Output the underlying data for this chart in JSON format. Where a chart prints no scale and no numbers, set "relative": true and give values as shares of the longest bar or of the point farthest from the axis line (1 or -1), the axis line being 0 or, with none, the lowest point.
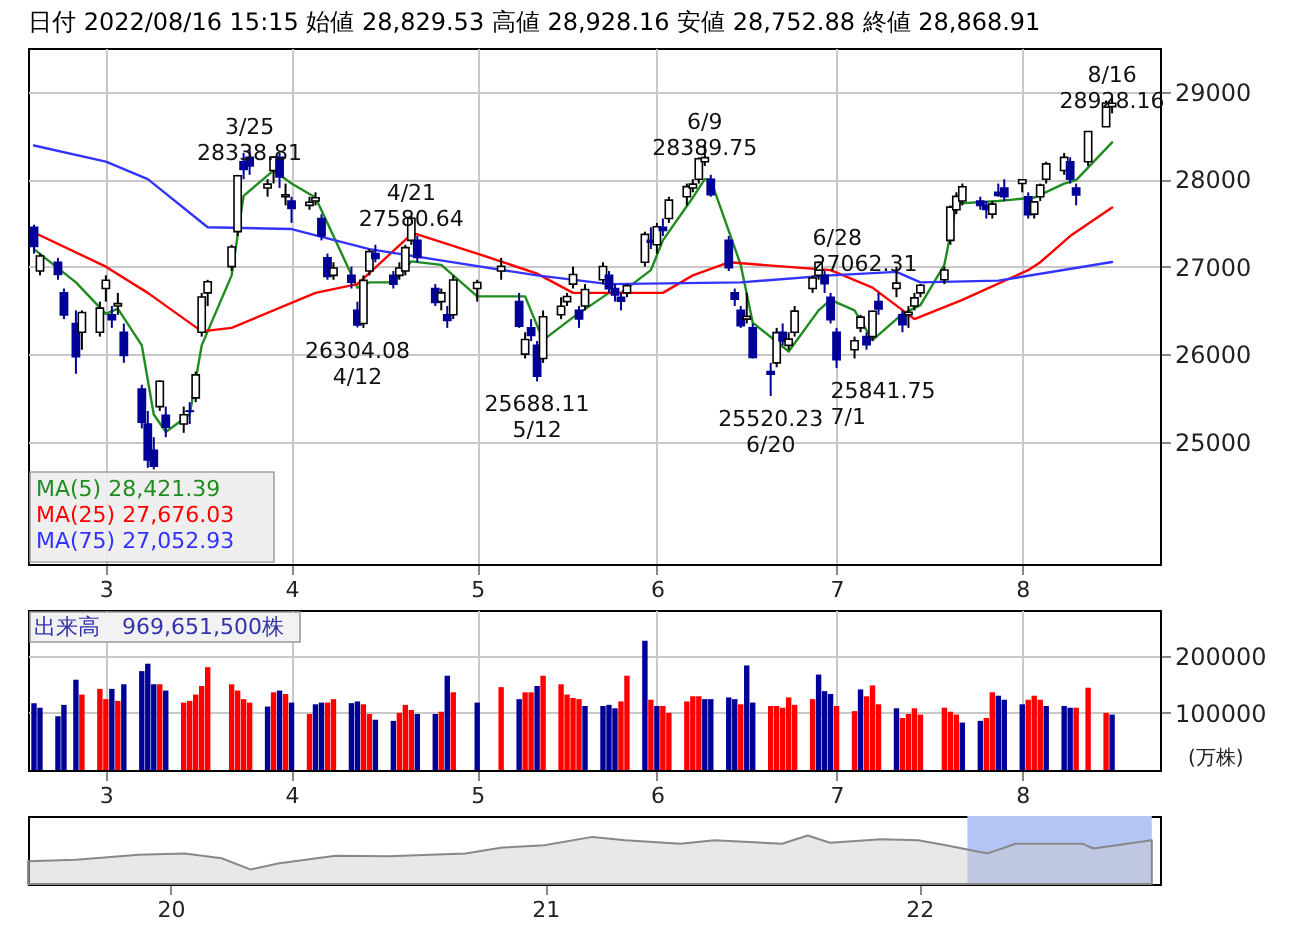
{
  "chart_data": [
    {
      "type": "candlestick",
      "title": "日付 2022/08/16 15:15 始値 28,829.53 高値 28,928.16 安値 28,752.88 終値 28,868.91",
      "x": [
        "2022-02-17",
        "2022-02-18",
        "2022-02-21",
        "2022-02-22",
        "2022-02-24",
        "2022-02-25",
        "2022-02-28",
        "2022-03-01",
        "2022-03-02",
        "2022-03-03",
        "2022-03-04",
        "2022-03-07",
        "2022-03-08",
        "2022-03-09",
        "2022-03-10",
        "2022-03-11",
        "2022-03-14",
        "2022-03-15",
        "2022-03-16",
        "2022-03-17",
        "2022-03-18",
        "2022-03-22",
        "2022-03-23",
        "2022-03-24",
        "2022-03-25",
        "2022-03-28",
        "2022-03-29",
        "2022-03-30",
        "2022-03-31",
        "2022-04-01",
        "2022-04-04",
        "2022-04-05",
        "2022-04-06",
        "2022-04-07",
        "2022-04-08",
        "2022-04-11",
        "2022-04-12",
        "2022-04-13",
        "2022-04-14",
        "2022-04-15",
        "2022-04-18",
        "2022-04-19",
        "2022-04-20",
        "2022-04-21",
        "2022-04-22",
        "2022-04-25",
        "2022-04-26",
        "2022-04-27",
        "2022-04-28",
        "2022-05-02",
        "2022-05-06",
        "2022-05-09",
        "2022-05-10",
        "2022-05-11",
        "2022-05-12",
        "2022-05-13",
        "2022-05-16",
        "2022-05-17",
        "2022-05-18",
        "2022-05-19",
        "2022-05-20",
        "2022-05-23",
        "2022-05-24",
        "2022-05-25",
        "2022-05-26",
        "2022-05-27",
        "2022-05-30",
        "2022-05-31",
        "2022-06-01",
        "2022-06-02",
        "2022-06-03",
        "2022-06-06",
        "2022-06-07",
        "2022-06-08",
        "2022-06-09",
        "2022-06-10",
        "2022-06-13",
        "2022-06-14",
        "2022-06-15",
        "2022-06-16",
        "2022-06-17",
        "2022-06-20",
        "2022-06-21",
        "2022-06-22",
        "2022-06-23",
        "2022-06-24",
        "2022-06-27",
        "2022-06-28",
        "2022-06-29",
        "2022-06-30",
        "2022-07-01",
        "2022-07-04",
        "2022-07-05",
        "2022-07-06",
        "2022-07-07",
        "2022-07-08",
        "2022-07-11",
        "2022-07-12",
        "2022-07-13",
        "2022-07-14",
        "2022-07-15",
        "2022-07-19",
        "2022-07-20",
        "2022-07-21",
        "2022-07-22",
        "2022-07-25",
        "2022-07-26",
        "2022-07-27",
        "2022-07-28",
        "2022-07-29",
        "2022-08-01",
        "2022-08-02",
        "2022-08-03",
        "2022-08-04",
        "2022-08-05",
        "2022-08-08",
        "2022-08-09",
        "2022-08-10",
        "2022-08-12",
        "2022-08-15",
        "2022-08-16"
      ],
      "ohlc": [
        [
          27450,
          27480,
          27150,
          27232
        ],
        [
          26950,
          27150,
          26900,
          27122
        ],
        [
          27050,
          27100,
          26850,
          26910
        ],
        [
          26700,
          26750,
          26400,
          26449
        ],
        [
          26350,
          26500,
          25775,
          25970
        ],
        [
          26250,
          26500,
          26050,
          26476
        ],
        [
          26250,
          26600,
          26200,
          26526
        ],
        [
          26750,
          26900,
          26600,
          26844
        ],
        [
          26450,
          26550,
          26300,
          26393
        ],
        [
          26550,
          26700,
          26450,
          26577
        ],
        [
          26250,
          26350,
          25900,
          25985
        ],
        [
          25600,
          25650,
          25150,
          25221
        ],
        [
          25200,
          25350,
          24700,
          24790
        ],
        [
          24900,
          25050,
          24682,
          24717
        ],
        [
          25400,
          25700,
          25350,
          25690
        ],
        [
          25300,
          25400,
          25050,
          25163
        ],
        [
          25200,
          25400,
          25100,
          25307
        ],
        [
          25350,
          25450,
          25200,
          25346
        ],
        [
          25500,
          25800,
          25450,
          25762
        ],
        [
          26250,
          26700,
          26200,
          26653
        ],
        [
          26700,
          26850,
          26550,
          26827
        ],
        [
          27000,
          27250,
          26950,
          27224
        ],
        [
          27400,
          28050,
          27350,
          28040
        ],
        [
          28200,
          28300,
          28000,
          28110
        ],
        [
          28250,
          28338.81,
          28050,
          28150
        ],
        [
          27900,
          28000,
          27800,
          27943
        ],
        [
          28100,
          28260,
          27950,
          28252
        ],
        [
          28250,
          28300,
          27900,
          28027
        ],
        [
          27800,
          27950,
          27700,
          27821
        ],
        [
          27750,
          27800,
          27500,
          27665
        ],
        [
          27700,
          27800,
          27650,
          27736
        ],
        [
          27750,
          27850,
          27700,
          27787
        ],
        [
          27550,
          27600,
          27300,
          27350
        ],
        [
          27100,
          27150,
          26850,
          26888
        ],
        [
          26900,
          27050,
          26850,
          26985
        ],
        [
          26900,
          27000,
          26750,
          26821
        ],
        [
          26500,
          26600,
          26304.08,
          26334
        ],
        [
          26350,
          26900,
          26300,
          26843
        ],
        [
          26950,
          27200,
          26900,
          27172
        ],
        [
          27150,
          27250,
          27050,
          27093
        ],
        [
          26900,
          26950,
          26750,
          26799
        ],
        [
          26900,
          27050,
          26850,
          26985
        ],
        [
          26950,
          27250,
          26900,
          27217
        ],
        [
          27300,
          27580.64,
          27250,
          27553
        ],
        [
          27300,
          27350,
          27050,
          27105
        ],
        [
          26750,
          26800,
          26550,
          26590
        ],
        [
          26600,
          26750,
          26500,
          26700
        ],
        [
          26450,
          26550,
          26300,
          26386
        ],
        [
          26450,
          26900,
          26400,
          26847
        ],
        [
          26750,
          26850,
          26600,
          26818
        ],
        [
          26950,
          27100,
          26850,
          27003
        ],
        [
          26600,
          26700,
          26300,
          26319
        ],
        [
          26000,
          26250,
          25950,
          26167
        ],
        [
          26300,
          26400,
          26150,
          26213
        ],
        [
          26100,
          26150,
          25688.11,
          25748
        ],
        [
          25950,
          26500,
          25900,
          26427
        ],
        [
          26450,
          26650,
          26400,
          26547
        ],
        [
          26600,
          26700,
          26550,
          26659
        ],
        [
          26800,
          27000,
          26750,
          26911
        ],
        [
          26500,
          26550,
          26300,
          26402
        ],
        [
          26550,
          26800,
          26500,
          26739
        ],
        [
          26850,
          27050,
          26800,
          27001
        ],
        [
          26900,
          26950,
          26700,
          26748
        ],
        [
          26750,
          26800,
          26600,
          26677
        ],
        [
          26650,
          26700,
          26500,
          26604
        ],
        [
          26700,
          26800,
          26650,
          26781
        ],
        [
          27050,
          27400,
          27000,
          27369
        ],
        [
          27300,
          27450,
          27200,
          27279
        ],
        [
          27250,
          27500,
          27150,
          27457
        ],
        [
          27450,
          27550,
          27350,
          27413
        ],
        [
          27550,
          27800,
          27500,
          27761
        ],
        [
          27800,
          27950,
          27700,
          27915
        ],
        [
          27900,
          28000,
          27850,
          27943
        ],
        [
          28000,
          28250,
          27950,
          28234
        ],
        [
          28200,
          28389.75,
          28150,
          28246
        ],
        [
          28000,
          28050,
          27800,
          27824
        ],
        [
          27300,
          27350,
          26950,
          26987
        ],
        [
          26700,
          26750,
          26550,
          26629
        ],
        [
          26500,
          26550,
          26300,
          26326
        ],
        [
          26400,
          26700,
          26350,
          26431
        ],
        [
          26300,
          26350,
          25950,
          25963
        ],
        [
          25800,
          25900,
          25520.23,
          25771
        ],
        [
          25900,
          26300,
          25850,
          26246
        ],
        [
          26250,
          26350,
          26100,
          26149
        ],
        [
          26100,
          26250,
          26050,
          26171
        ],
        [
          26250,
          26550,
          26200,
          26491
        ],
        [
          26750,
          26900,
          26700,
          26871
        ],
        [
          26900,
          27062.31,
          26850,
          27049
        ],
        [
          26900,
          26950,
          26700,
          26804
        ],
        [
          26650,
          26700,
          26350,
          26393
        ],
        [
          26250,
          26300,
          25841.75,
          25935
        ],
        [
          26050,
          26200,
          25950,
          26153
        ],
        [
          26300,
          26450,
          26250,
          26423
        ],
        [
          26200,
          26250,
          26050,
          26107
        ],
        [
          26200,
          26500,
          26150,
          26490
        ],
        [
          26600,
          26700,
          26450,
          26517
        ],
        [
          26750,
          27000,
          26650,
          26812
        ],
        [
          26450,
          26500,
          26250,
          26336
        ],
        [
          26450,
          26550,
          26300,
          26478
        ],
        [
          26550,
          26700,
          26500,
          26643
        ],
        [
          26700,
          26800,
          26650,
          26788
        ],
        [
          26850,
          27000,
          26800,
          26961
        ],
        [
          27300,
          27700,
          27250,
          27680
        ],
        [
          27650,
          27850,
          27600,
          27803
        ],
        [
          27750,
          27950,
          27700,
          27914
        ],
        [
          27750,
          27800,
          27650,
          27699
        ],
        [
          27700,
          27750,
          27550,
          27655
        ],
        [
          27600,
          27750,
          27550,
          27715
        ],
        [
          27850,
          27950,
          27800,
          27815
        ],
        [
          27900,
          28000,
          27750,
          27801
        ],
        [
          27950,
          28000,
          27850,
          27993
        ],
        [
          27800,
          27850,
          27550,
          27594
        ],
        [
          27600,
          27750,
          27550,
          27741
        ],
        [
          27800,
          27950,
          27750,
          27932
        ],
        [
          28000,
          28200,
          27950,
          28175
        ],
        [
          28100,
          28300,
          28050,
          28249
        ],
        [
          28200,
          28250,
          27950,
          27999
        ],
        [
          27900,
          27950,
          27700,
          27819
        ],
        [
          28200,
          28550,
          28150,
          28546
        ],
        [
          28600,
          28900,
          28600,
          28871
        ],
        [
          28829.53,
          28928.16,
          28752.88,
          28868.91
        ]
      ],
      "series": [
        {
          "name": "MA(5) 28,421.39",
          "type": "line",
          "color": "#1e8c1e",
          "x": [
            "2022-02-17",
            "2022-02-24",
            "2022-03-01",
            "2022-03-03",
            "2022-03-07",
            "2022-03-09",
            "2022-03-11",
            "2022-03-15",
            "2022-03-17",
            "2022-03-22",
            "2022-03-24",
            "2022-03-29",
            "2022-04-01",
            "2022-04-05",
            "2022-04-08",
            "2022-04-12",
            "2022-04-14",
            "2022-04-18",
            "2022-04-21",
            "2022-04-26",
            "2022-05-02",
            "2022-05-10",
            "2022-05-13",
            "2022-05-18",
            "2022-05-24",
            "2022-05-26",
            "2022-05-31",
            "2022-06-02",
            "2022-06-07",
            "2022-06-09",
            "2022-06-10",
            "2022-06-15",
            "2022-06-17",
            "2022-06-23",
            "2022-06-28",
            "2022-06-30",
            "2022-07-04",
            "2022-07-07",
            "2022-07-12",
            "2022-07-15",
            "2022-07-19",
            "2022-07-21",
            "2022-07-28",
            "2022-08-03",
            "2022-08-08",
            "2022-08-10",
            "2022-08-16"
          ],
          "values": [
            27200,
            26820,
            26460,
            26520,
            26100,
            25310,
            25110,
            25310,
            26100,
            26900,
            27810,
            28100,
            27950,
            27790,
            27350,
            26760,
            26820,
            26820,
            27060,
            27020,
            26660,
            26660,
            26160,
            26420,
            26700,
            26700,
            26960,
            27300,
            27790,
            28000,
            27990,
            27020,
            26360,
            26030,
            26500,
            26620,
            26500,
            26160,
            26460,
            26560,
            27020,
            27720,
            27750,
            27790,
            27950,
            27990,
            28421.39
          ]
        },
        {
          "name": "MA(25) 27,676.03",
          "type": "line",
          "color": "#ff0000",
          "x": [
            "2022-02-17",
            "2022-03-01",
            "2022-03-08",
            "2022-03-17",
            "2022-03-22",
            "2022-04-05",
            "2022-04-12",
            "2022-04-21",
            "2022-04-22",
            "2022-05-02",
            "2022-05-12",
            "2022-05-18",
            "2022-06-02",
            "2022-06-07",
            "2022-06-13",
            "2022-06-30",
            "2022-07-07",
            "2022-07-14",
            "2022-07-22",
            "2022-08-02",
            "2022-08-04",
            "2022-08-09",
            "2022-08-16"
          ],
          "values": [
            27390,
            27000,
            26700,
            26260,
            26300,
            26700,
            26800,
            27370,
            27370,
            27150,
            26920,
            26700,
            26700,
            26900,
            27050,
            26960,
            26760,
            26400,
            26620,
            26960,
            27050,
            27350,
            27676.03
          ]
        },
        {
          "name": "MA(75) 27,052.93",
          "type": "line",
          "color": "#3333ff",
          "x": [
            "2022-02-17",
            "2022-03-01",
            "2022-03-08",
            "2022-03-18",
            "2022-04-01",
            "2022-04-14",
            "2022-04-27",
            "2022-05-12",
            "2022-05-24",
            "2022-06-15",
            "2022-06-30",
            "2022-07-11",
            "2022-07-15",
            "2022-07-28",
            "2022-08-16"
          ],
          "values": [
            28385,
            28200,
            28000,
            27450,
            27430,
            27200,
            27060,
            26900,
            26800,
            26820,
            26900,
            26940,
            26820,
            26840,
            27052.93
          ]
        }
      ],
      "xlim": [
        "2022-02-16",
        "2022-08-24"
      ],
      "xticks": [
        {
          "value": "2022-03-01",
          "label": "3"
        },
        {
          "value": "2022-04-01",
          "label": "4"
        },
        {
          "value": "2022-05-02",
          "label": "5"
        },
        {
          "value": "2022-06-01",
          "label": "6"
        },
        {
          "value": "2022-07-01",
          "label": "7"
        },
        {
          "value": "2022-08-01",
          "label": "8"
        }
      ],
      "ylim": [
        23600,
        29500
      ],
      "yticks": [
        25000,
        26000,
        27000,
        28000,
        29000
      ],
      "grid": true,
      "legend": "bottom left",
      "annotations": [
        {
          "text": "3/25\n28338.81",
          "x": "2022-03-25",
          "y": 28338.81
        },
        {
          "text": "26304.08\n4/12",
          "x": "2022-04-12",
          "y": 26304.08
        },
        {
          "text": "4/21\n27580.64",
          "x": "2022-04-21",
          "y": 27580.64
        },
        {
          "text": "25688.11\n5/12",
          "x": "2022-05-12",
          "y": 25688.11
        },
        {
          "text": "6/9\n28389.75",
          "x": "2022-06-09",
          "y": 28389.75
        },
        {
          "text": "25520.23\n6/20",
          "x": "2022-06-20",
          "y": 25520.23
        },
        {
          "text": "6/28\n27062.31",
          "x": "2022-06-28",
          "y": 27062.31
        },
        {
          "text": "25841.75\n7/1",
          "x": "2022-07-01",
          "y": 25841.75
        },
        {
          "text": "8/16\n28928.16",
          "x": "2022-08-16",
          "y": 28928.16
        }
      ]
    },
    {
      "type": "bar",
      "title": "出来高　969,651,500株",
      "ylabel": "(万株)",
      "x": [
        "2022-02-17",
        "2022-02-18",
        "2022-02-21",
        "2022-02-22",
        "2022-02-24",
        "2022-02-25",
        "2022-02-28",
        "2022-03-01",
        "2022-03-02",
        "2022-03-03",
        "2022-03-04",
        "2022-03-07",
        "2022-03-08",
        "2022-03-09",
        "2022-03-10",
        "2022-03-11",
        "2022-03-14",
        "2022-03-15",
        "2022-03-16",
        "2022-03-17",
        "2022-03-18",
        "2022-03-22",
        "2022-03-23",
        "2022-03-24",
        "2022-03-25",
        "2022-03-28",
        "2022-03-29",
        "2022-03-30",
        "2022-03-31",
        "2022-04-01",
        "2022-04-04",
        "2022-04-05",
        "2022-04-06",
        "2022-04-07",
        "2022-04-08",
        "2022-04-11",
        "2022-04-12",
        "2022-04-13",
        "2022-04-14",
        "2022-04-15",
        "2022-04-18",
        "2022-04-19",
        "2022-04-20",
        "2022-04-21",
        "2022-04-22",
        "2022-04-25",
        "2022-04-26",
        "2022-04-27",
        "2022-04-28",
        "2022-05-02",
        "2022-05-06",
        "2022-05-09",
        "2022-05-10",
        "2022-05-11",
        "2022-05-12",
        "2022-05-13",
        "2022-05-16",
        "2022-05-17",
        "2022-05-18",
        "2022-05-19",
        "2022-05-20",
        "2022-05-23",
        "2022-05-24",
        "2022-05-25",
        "2022-05-26",
        "2022-05-27",
        "2022-05-30",
        "2022-05-31",
        "2022-06-01",
        "2022-06-02",
        "2022-06-03",
        "2022-06-06",
        "2022-06-07",
        "2022-06-08",
        "2022-06-09",
        "2022-06-10",
        "2022-06-13",
        "2022-06-14",
        "2022-06-15",
        "2022-06-16",
        "2022-06-17",
        "2022-06-20",
        "2022-06-21",
        "2022-06-22",
        "2022-06-23",
        "2022-06-24",
        "2022-06-27",
        "2022-06-28",
        "2022-06-29",
        "2022-06-30",
        "2022-07-01",
        "2022-07-04",
        "2022-07-05",
        "2022-07-06",
        "2022-07-07",
        "2022-07-08",
        "2022-07-11",
        "2022-07-12",
        "2022-07-13",
        "2022-07-14",
        "2022-07-15",
        "2022-07-19",
        "2022-07-20",
        "2022-07-21",
        "2022-07-22",
        "2022-07-25",
        "2022-07-26",
        "2022-07-27",
        "2022-07-28",
        "2022-07-29",
        "2022-08-01",
        "2022-08-02",
        "2022-08-03",
        "2022-08-04",
        "2022-08-05",
        "2022-08-08",
        "2022-08-09",
        "2022-08-10",
        "2022-08-12",
        "2022-08-15",
        "2022-08-16"
      ],
      "values": [
        117000,
        109000,
        94000,
        114000,
        158000,
        132000,
        142000,
        124000,
        142000,
        121000,
        150000,
        173000,
        186000,
        150000,
        150000,
        139000,
        118000,
        121000,
        132000,
        147000,
        180000,
        150000,
        139000,
        124000,
        118000,
        111000,
        136000,
        139000,
        133000,
        118000,
        98000,
        115000,
        118000,
        118000,
        124000,
        117000,
        120000,
        115000,
        98000,
        88000,
        86000,
        100000,
        114000,
        105000,
        98000,
        98000,
        102000,
        165000,
        136000,
        118000,
        145000,
        124000,
        136000,
        136000,
        147000,
        165000,
        150000,
        132000,
        126000,
        124000,
        112000,
        112000,
        114000,
        108000,
        120000,
        165000,
        226000,
        123000,
        112000,
        112000,
        100000,
        120000,
        129000,
        129000,
        124000,
        124000,
        127000,
        124000,
        115000,
        183000,
        118000,
        112000,
        112000,
        109000,
        127000,
        114000,
        124000,
        167000,
        138000,
        133000,
        112000,
        103000,
        141000,
        129000,
        148000,
        115000,
        108000,
        91000,
        98000,
        108000,
        97000,
        109000,
        102000,
        97000,
        83000,
        86000,
        91000,
        136000,
        130000,
        123000,
        115000,
        123000,
        130000,
        123000,
        112000,
        112000,
        109000,
        109000,
        144000,
        100000,
        96965
      ],
      "colors": [
        "#000099",
        "#000099",
        "#000099",
        "#000099",
        "#000099",
        "#ff0000",
        "#ff0000",
        "#ff0000",
        "#000099",
        "#ff0000",
        "#000099",
        "#000099",
        "#000099",
        "#000099",
        "#ff0000",
        "#000099",
        "#ff0000",
        "#ff0000",
        "#ff0000",
        "#ff0000",
        "#ff0000",
        "#ff0000",
        "#ff0000",
        "#ff0000",
        "#ff0000",
        "#000099",
        "#ff0000",
        "#000099",
        "#ff0000",
        "#000099",
        "#ff0000",
        "#000099",
        "#000099",
        "#ff0000",
        "#ff0000",
        "#000099",
        "#000099",
        "#ff0000",
        "#ff0000",
        "#000099",
        "#000099",
        "#ff0000",
        "#ff0000",
        "#ff0000",
        "#000099",
        "#000099",
        "#ff0000",
        "#000099",
        "#ff0000",
        "#000099",
        "#ff0000",
        "#000099",
        "#ff0000",
        "#ff0000",
        "#000099",
        "#ff0000",
        "#ff0000",
        "#ff0000",
        "#ff0000",
        "#ff0000",
        "#000099",
        "#000099",
        "#000099",
        "#000099",
        "#ff0000",
        "#ff0000",
        "#000099",
        "#ff0000",
        "#000099",
        "#ff0000",
        "#ff0000",
        "#ff0000",
        "#ff0000",
        "#ff0000",
        "#000099",
        "#000099",
        "#000099",
        "#000099",
        "#ff0000",
        "#000099",
        "#000099",
        "#ff0000",
        "#ff0000",
        "#ff0000",
        "#ff0000",
        "#ff0000",
        "#ff0000",
        "#000099",
        "#000099",
        "#000099",
        "#ff0000",
        "#ff0000",
        "#000099",
        "#ff0000",
        "#ff0000",
        "#ff0000",
        "#000099",
        "#ff0000",
        "#ff0000",
        "#ff0000",
        "#ff0000",
        "#ff0000",
        "#ff0000",
        "#ff0000",
        "#000099",
        "#000099",
        "#ff0000",
        "#ff0000",
        "#000099",
        "#000099",
        "#000099",
        "#ff0000",
        "#ff0000",
        "#ff0000",
        "#000099",
        "#000099",
        "#000099",
        "#ff0000",
        "#ff0000",
        "#ff0000",
        "#000099"
      ],
      "xlim": [
        "2022-02-16",
        "2022-08-24"
      ],
      "xticks": [
        {
          "value": "2022-03-01",
          "label": "3"
        },
        {
          "value": "2022-04-01",
          "label": "4"
        },
        {
          "value": "2022-05-02",
          "label": "5"
        },
        {
          "value": "2022-06-01",
          "label": "6"
        },
        {
          "value": "2022-07-01",
          "label": "7"
        },
        {
          "value": "2022-08-01",
          "label": "8"
        }
      ],
      "ylim": [
        0,
        280000
      ],
      "yticks": [
        100000,
        200000
      ],
      "grid": true
    },
    {
      "type": "area",
      "relative": true,
      "color": "#888888",
      "x": [
        "2019-08-15",
        "2019-10-01",
        "2019-12-01",
        "2020-01-15",
        "2020-02-20",
        "2020-03-19",
        "2020-04-15",
        "2020-06-10",
        "2020-08-01",
        "2020-10-15",
        "2020-11-20",
        "2020-12-31",
        "2021-02-16",
        "2021-03-20",
        "2021-05-13",
        "2021-06-15",
        "2021-08-20",
        "2021-09-14",
        "2021-10-06",
        "2021-11-25",
        "2021-12-31",
        "2022-01-27",
        "2022-03-09",
        "2022-04-05",
        "2022-06-09",
        "2022-06-20",
        "2022-08-16"
      ],
      "values": [
        0.47,
        0.5,
        0.6,
        0.63,
        0.53,
        0.3,
        0.42,
        0.58,
        0.57,
        0.63,
        0.75,
        0.8,
        0.97,
        0.9,
        0.83,
        0.9,
        0.83,
        1,
        0.85,
        0.92,
        0.9,
        0.8,
        0.63,
        0.83,
        0.83,
        0.73,
        0.9
      ],
      "xlim": [
        "2019-08-15",
        "2022-08-24"
      ],
      "xticks": [
        {
          "value": "2020-01-01",
          "label": "20"
        },
        {
          "value": "2021-01-01",
          "label": "21"
        },
        {
          "value": "2022-01-01",
          "label": "22"
        }
      ],
      "bands": [
        {
          "axis": "x",
          "from": "2022-02-17",
          "to": "2022-08-16",
          "color": "#b4c4f4"
        }
      ]
    }
  ]
}
